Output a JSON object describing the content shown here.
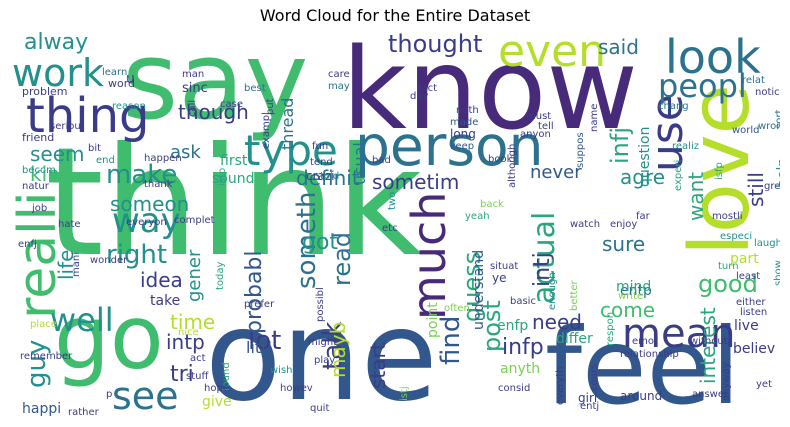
{
  "title": "Word Cloud for the Entire Dataset",
  "palette": {
    "dark_purple": "#472a7a",
    "indigo": "#3b3c88",
    "slate_blue": "#31578c",
    "steel_blue": "#2c728e",
    "teal": "#22908c",
    "green_teal": "#2aa67c",
    "green": "#3fbc6e",
    "lime": "#7ad151",
    "yellow_green": "#b5de2b",
    "yellow": "#d8e219"
  },
  "words": [
    "think",
    "one",
    "know",
    "say",
    "feel",
    "love",
    "go",
    "person",
    "look",
    "even",
    "thing",
    "work",
    "realli",
    "use",
    "type",
    "much",
    "peopl",
    "mean",
    "see",
    "well",
    "actual",
    "way",
    "someth",
    "guy",
    "right",
    "make",
    "thought",
    "alway",
    "said",
    "though",
    "seem",
    "kind",
    "someon",
    "talk",
    "good",
    "time",
    "lot",
    "got",
    "read",
    "guess",
    "post",
    "probabl",
    "find",
    "infj",
    "intj",
    "infp",
    "intp",
    "sometim",
    "definit",
    "still",
    "agre",
    "want",
    "interest",
    "sure",
    "come",
    "need",
    "mayb",
    "start",
    "idea",
    "gener",
    "tri",
    "littl",
    "life",
    "ask",
    "usual",
    "never",
    "happi",
    "give",
    "entp",
    "enfp",
    "differ",
    "mind",
    "live",
    "believ",
    "anyth",
    "understand",
    "question",
    "help",
    "part",
    "take",
    "first",
    "sound",
    "thread",
    "made",
    "long",
    "keep",
    "book",
    "bad",
    "fun",
    "tend",
    "crazi",
    "friend",
    "problem",
    "word",
    "learn",
    "man",
    "best",
    "care",
    "may",
    "fact",
    "noth",
    "must",
    "tell",
    "although",
    "anyon",
    "suppos",
    "name",
    "chang",
    "realiz",
    "relat",
    "notic",
    "sort",
    "world",
    "wrong",
    "isfp",
    "istp",
    "reason",
    "seriou",
    "becom",
    "bit",
    "end",
    "natur",
    "thank",
    "happen",
    "job",
    "hate",
    "enfj",
    "everyon",
    "complet",
    "today",
    "prefer",
    "possibl",
    "told",
    "etc",
    "two",
    "back",
    "yeah",
    "situat",
    "ye",
    "enough",
    "watch",
    "enjoy",
    "far",
    "mostli",
    "great",
    "especi",
    "experi",
    "laugh",
    "show",
    "turn",
    "least",
    "either",
    "listen",
    "anyway",
    "yet",
    "without",
    "answer",
    "relationship",
    "emot",
    "respon",
    "write",
    "often",
    "basic",
    "better",
    "point",
    "entj",
    "girl",
    "around",
    "cours",
    "everyth",
    "consid",
    "istj",
    "quit",
    "howev",
    "wish",
    "play",
    "might",
    "found",
    "act",
    "hope",
    "stuff",
    "rather",
    "place",
    "remember",
    "wonder",
    "mani",
    "nice",
    "sinc",
    "exampl",
    "put",
    "case",
    "u",
    "call",
    "day",
    "p"
  ]
}
